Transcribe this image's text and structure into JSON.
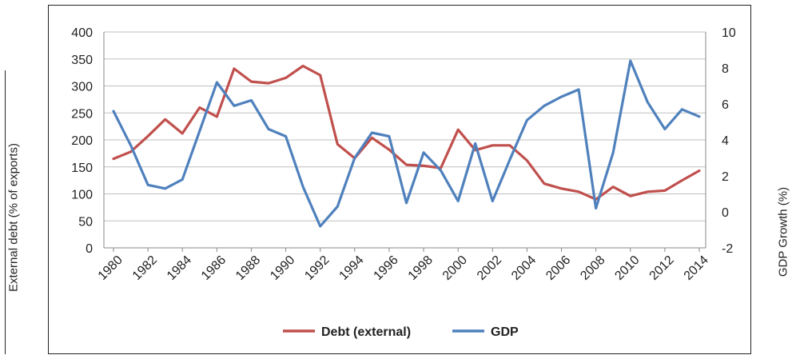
{
  "chart_data": {
    "type": "line",
    "ylabel": "External debt (% of exports)",
    "y2label": "GDP Growth (%)",
    "ylim": [
      0,
      400
    ],
    "y2lim": [
      -2,
      10
    ],
    "yticks": [
      "0",
      "50",
      "100",
      "150",
      "200",
      "250",
      "300",
      "350",
      "400"
    ],
    "y2ticks": [
      "-2",
      "0",
      "2",
      "4",
      "6",
      "8",
      "10"
    ],
    "xtick_labels": [
      "1980",
      "1982",
      "1984",
      "1986",
      "1988",
      "1990",
      "1992",
      "1994",
      "1996",
      "1998",
      "2000",
      "2002",
      "2004",
      "2006",
      "2008",
      "2010",
      "2012",
      "2014"
    ],
    "grid": true,
    "legend": "bottom",
    "series": [
      {
        "name": "Debt (external)",
        "axis": "left",
        "color": "#c0504d",
        "x": [
          1980,
          1981,
          1982,
          1983,
          1984,
          1985,
          1986,
          1987,
          1988,
          1989,
          1990,
          1991,
          1992,
          1993,
          1994,
          1995,
          1996,
          1997,
          1998,
          1999,
          2000,
          2001,
          2002,
          2003,
          2004,
          2005,
          2006,
          2007,
          2008,
          2009,
          2010,
          2011,
          2012,
          2013,
          2014
        ],
        "values": [
          165,
          178,
          207,
          238,
          212,
          260,
          243,
          332,
          308,
          305,
          315,
          337,
          320,
          192,
          166,
          204,
          182,
          154,
          152,
          148,
          219,
          181,
          190,
          190,
          162,
          119,
          110,
          104,
          90,
          113,
          96,
          104,
          106,
          125,
          143
        ]
      },
      {
        "name": "GDP",
        "axis": "right",
        "color": "#4f81bd",
        "x": [
          1980,
          1981,
          1982,
          1983,
          1984,
          1985,
          1986,
          1987,
          1988,
          1989,
          1990,
          1991,
          1992,
          1993,
          1994,
          1995,
          1996,
          1997,
          1998,
          1999,
          2000,
          2001,
          2002,
          2003,
          2004,
          2005,
          2006,
          2007,
          2008,
          2009,
          2010,
          2011,
          2012,
          2013,
          2014
        ],
        "values": [
          5.6,
          3.7,
          1.5,
          1.3,
          1.8,
          4.5,
          7.2,
          5.9,
          6.2,
          4.6,
          4.2,
          1.4,
          -0.8,
          0.3,
          3.0,
          4.4,
          4.2,
          0.5,
          3.3,
          2.3,
          0.6,
          3.8,
          0.6,
          2.9,
          5.1,
          5.9,
          6.4,
          6.8,
          0.2,
          3.3,
          8.4,
          6.1,
          4.6,
          5.7,
          5.3
        ]
      }
    ]
  }
}
